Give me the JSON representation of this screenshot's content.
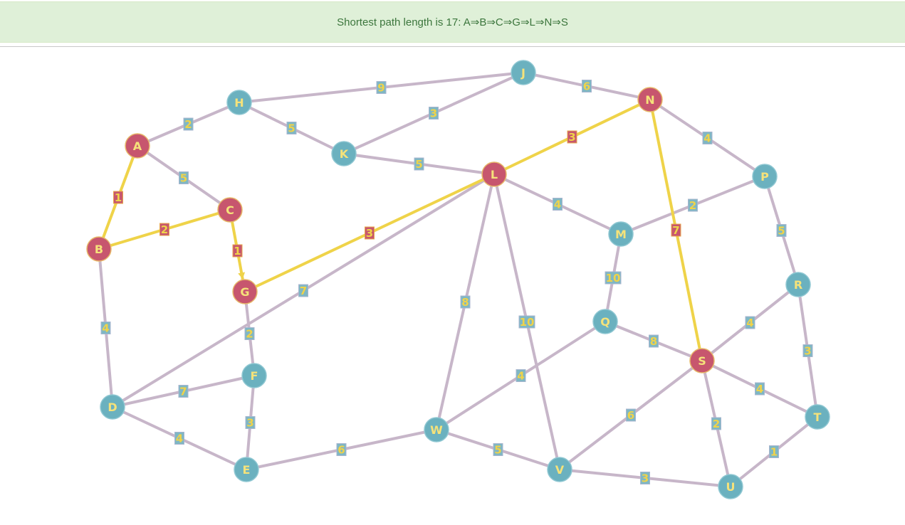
{
  "result": {
    "text": "Shortest path length is 17: A⇒B⇒C⇒G⇒L⇒N⇒S",
    "length": 17,
    "path": [
      "A",
      "B",
      "C",
      "G",
      "L",
      "N",
      "S"
    ]
  },
  "colors": {
    "banner_bg": "#dff0d8",
    "banner_text": "#3c763d",
    "node_default": "#6bb1bf",
    "node_path": "#c7566e",
    "edge_default": "#c7b6c9",
    "edge_path": "#efd349",
    "label_text": "#efd349",
    "label_box_default": "#7fb7c4",
    "label_box_path": "#c7566e"
  },
  "graph": {
    "nodes": [
      {
        "id": "A",
        "status": "path"
      },
      {
        "id": "B",
        "status": "path"
      },
      {
        "id": "C",
        "status": "path"
      },
      {
        "id": "D",
        "status": "default"
      },
      {
        "id": "E",
        "status": "default"
      },
      {
        "id": "F",
        "status": "default"
      },
      {
        "id": "G",
        "status": "path"
      },
      {
        "id": "H",
        "status": "default"
      },
      {
        "id": "J",
        "status": "default"
      },
      {
        "id": "K",
        "status": "default"
      },
      {
        "id": "L",
        "status": "path"
      },
      {
        "id": "M",
        "status": "default"
      },
      {
        "id": "N",
        "status": "path"
      },
      {
        "id": "P",
        "status": "default"
      },
      {
        "id": "Q",
        "status": "default"
      },
      {
        "id": "R",
        "status": "default"
      },
      {
        "id": "S",
        "status": "path"
      },
      {
        "id": "T",
        "status": "default"
      },
      {
        "id": "U",
        "status": "default"
      },
      {
        "id": "V",
        "status": "default"
      },
      {
        "id": "W",
        "status": "default"
      }
    ],
    "edges": [
      {
        "from": "A",
        "to": "H",
        "weight": 2,
        "on_path": false
      },
      {
        "from": "A",
        "to": "C",
        "weight": 5,
        "on_path": false
      },
      {
        "from": "A",
        "to": "B",
        "weight": 1,
        "on_path": true
      },
      {
        "from": "B",
        "to": "C",
        "weight": 2,
        "on_path": true
      },
      {
        "from": "B",
        "to": "D",
        "weight": 4,
        "on_path": false
      },
      {
        "from": "C",
        "to": "G",
        "weight": 1,
        "on_path": true
      },
      {
        "from": "G",
        "to": "L",
        "weight": 3,
        "on_path": true
      },
      {
        "from": "G",
        "to": "F",
        "weight": 2,
        "on_path": false
      },
      {
        "from": "H",
        "to": "J",
        "weight": 9,
        "on_path": false
      },
      {
        "from": "H",
        "to": "K",
        "weight": 5,
        "on_path": false
      },
      {
        "from": "J",
        "to": "K",
        "weight": 3,
        "on_path": false
      },
      {
        "from": "J",
        "to": "N",
        "weight": 6,
        "on_path": false
      },
      {
        "from": "K",
        "to": "L",
        "weight": 5,
        "on_path": false
      },
      {
        "from": "L",
        "to": "N",
        "weight": 3,
        "on_path": true
      },
      {
        "from": "L",
        "to": "D",
        "weight": 7,
        "on_path": false
      },
      {
        "from": "L",
        "to": "M",
        "weight": 4,
        "on_path": false
      },
      {
        "from": "L",
        "to": "W",
        "weight": 8,
        "on_path": false
      },
      {
        "from": "L",
        "to": "V",
        "weight": 10,
        "on_path": false
      },
      {
        "from": "N",
        "to": "P",
        "weight": 4,
        "on_path": false
      },
      {
        "from": "N",
        "to": "S",
        "weight": 7,
        "on_path": true
      },
      {
        "from": "M",
        "to": "P",
        "weight": 2,
        "on_path": false
      },
      {
        "from": "M",
        "to": "Q",
        "weight": 10,
        "on_path": false
      },
      {
        "from": "P",
        "to": "R",
        "weight": 5,
        "on_path": false
      },
      {
        "from": "R",
        "to": "S",
        "weight": 4,
        "on_path": false
      },
      {
        "from": "R",
        "to": "T",
        "weight": 3,
        "on_path": false
      },
      {
        "from": "Q",
        "to": "S",
        "weight": 8,
        "on_path": false
      },
      {
        "from": "Q",
        "to": "W",
        "weight": 4,
        "on_path": false
      },
      {
        "from": "S",
        "to": "T",
        "weight": 4,
        "on_path": false
      },
      {
        "from": "S",
        "to": "V",
        "weight": 6,
        "on_path": false
      },
      {
        "from": "S",
        "to": "U",
        "weight": 2,
        "on_path": false
      },
      {
        "from": "T",
        "to": "U",
        "weight": 1,
        "on_path": false
      },
      {
        "from": "D",
        "to": "F",
        "weight": 7,
        "on_path": false
      },
      {
        "from": "D",
        "to": "E",
        "weight": 4,
        "on_path": false
      },
      {
        "from": "F",
        "to": "E",
        "weight": 3,
        "on_path": false
      },
      {
        "from": "E",
        "to": "W",
        "weight": 6,
        "on_path": false
      },
      {
        "from": "W",
        "to": "V",
        "weight": 5,
        "on_path": false
      },
      {
        "from": "V",
        "to": "U",
        "weight": 3,
        "on_path": false
      }
    ]
  }
}
